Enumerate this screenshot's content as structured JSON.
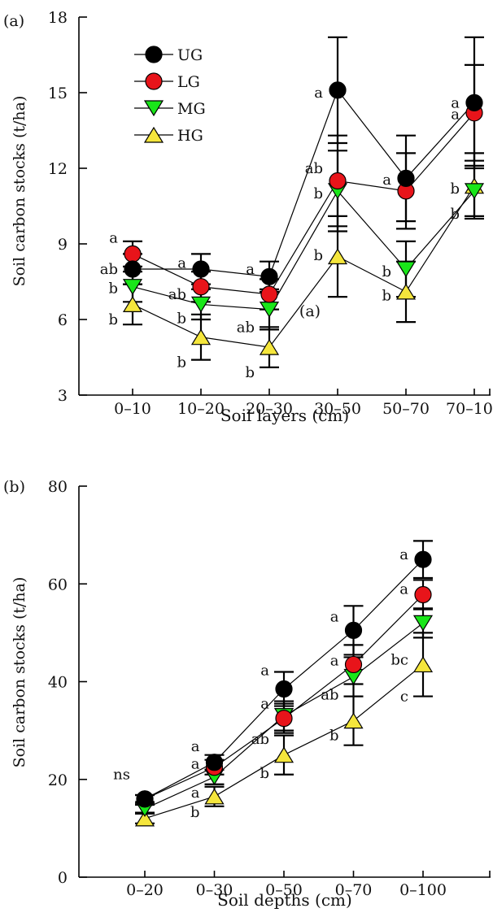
{
  "chart_data": [
    {
      "type": "line",
      "panel_label": "(a)",
      "inner_label": "(a)",
      "xlabel": "Soil layers (cm)",
      "ylabel": "Soil carbon stocks (t/ha)",
      "categories": [
        "0–10",
        "10–20",
        "20–30",
        "30–50",
        "50–70",
        "70–100"
      ],
      "ylim": [
        3,
        18
      ],
      "yticks": [
        3,
        6,
        9,
        12,
        15,
        18
      ],
      "legend_position": "top-left",
      "series": [
        {
          "name": "UG",
          "marker": "circle",
          "color": "#000000",
          "values": [
            8.0,
            8.0,
            7.7,
            15.1,
            11.6,
            14.6
          ],
          "errors": [
            0.6,
            0.6,
            0.6,
            2.1,
            1.7,
            2.6
          ]
        },
        {
          "name": "LG",
          "marker": "circle",
          "color": "#e8141a",
          "values": [
            8.6,
            7.3,
            7.0,
            11.5,
            11.1,
            14.2
          ],
          "errors": [
            0.5,
            0.6,
            0.6,
            1.8,
            1.5,
            1.9
          ]
        },
        {
          "name": "MG",
          "marker": "triangle-down",
          "color": "#19e619",
          "values": [
            7.3,
            6.6,
            6.4,
            11.1,
            8.0,
            11.1
          ],
          "errors": [
            0.6,
            0.6,
            0.8,
            1.6,
            1.1,
            1.0
          ]
        },
        {
          "name": "HG",
          "marker": "triangle-up",
          "color": "#f5e63c",
          "values": [
            6.6,
            5.3,
            4.9,
            8.5,
            7.1,
            11.3
          ],
          "errors": [
            0.8,
            0.9,
            0.8,
            1.6,
            1.2,
            1.3
          ]
        }
      ],
      "annotations": [
        {
          "text": "a",
          "x": "0–10",
          "y": 9.25
        },
        {
          "text": "ab",
          "x": "0–10",
          "y": 8.0
        },
        {
          "text": "b",
          "x": "0–10",
          "y": 7.25
        },
        {
          "text": "b",
          "x": "0–10",
          "y": 6.0
        },
        {
          "text": "a",
          "x": "10–20",
          "y": 8.25
        },
        {
          "text": "ab",
          "x": "10–20",
          "y": 7.0
        },
        {
          "text": "b",
          "x": "10–20",
          "y": 6.05
        },
        {
          "text": "b",
          "x": "10–20",
          "y": 4.3
        },
        {
          "text": "a",
          "x": "20–30",
          "y": 8.0
        },
        {
          "text": "ab",
          "x": "20–30",
          "y": 5.7
        },
        {
          "text": "b",
          "x": "20–30",
          "y": 3.9
        },
        {
          "text": "a",
          "x": "30–50",
          "y": 15.0
        },
        {
          "text": "ab",
          "x": "30–50",
          "y": 12.0
        },
        {
          "text": "b",
          "x": "30–50",
          "y": 11.0
        },
        {
          "text": "b",
          "x": "30–50",
          "y": 8.55
        },
        {
          "text": "a",
          "x": "50–70",
          "y": 11.55
        },
        {
          "text": "b",
          "x": "50–70",
          "y": 7.9
        },
        {
          "text": "b",
          "x": "50–70",
          "y": 6.95
        },
        {
          "text": "a",
          "x": "70–100",
          "y": 14.6
        },
        {
          "text": "a",
          "x": "70–100",
          "y": 14.15
        },
        {
          "text": "b",
          "x": "70–100",
          "y": 11.2
        },
        {
          "text": "b",
          "x": "70–100",
          "y": 10.2
        }
      ]
    },
    {
      "type": "line",
      "panel_label": "(b)",
      "xlabel": "Soil depths (cm)",
      "ylabel": "Soil carbon stocks (t/ha)",
      "categories": [
        "0–20",
        "0–30",
        "0–50",
        "0–70",
        "0–100"
      ],
      "ylim": [
        0,
        80
      ],
      "yticks": [
        0,
        20,
        40,
        60,
        80
      ],
      "series": [
        {
          "name": "UG",
          "marker": "circle",
          "color": "#000000",
          "values": [
            16.0,
            23.5,
            38.5,
            50.5,
            65.0
          ],
          "errors": [
            0.8,
            1.5,
            3.5,
            5.0,
            3.8
          ]
        },
        {
          "name": "LG",
          "marker": "circle",
          "color": "#e8141a",
          "values": [
            16.0,
            22.5,
            32.5,
            43.5,
            57.8
          ],
          "errors": [
            0.8,
            1.5,
            3.0,
            4.0,
            3.0
          ]
        },
        {
          "name": "MG",
          "marker": "triangle-down",
          "color": "#19e619",
          "values": [
            14.0,
            20.5,
            33.0,
            41.0,
            52.0
          ],
          "errors": [
            0.8,
            1.5,
            3.0,
            4.0,
            3.0
          ]
        },
        {
          "name": "HG",
          "marker": "triangle-up",
          "color": "#f5e63c",
          "values": [
            12.0,
            16.5,
            25.0,
            32.0,
            43.5
          ],
          "errors": [
            1.0,
            2.0,
            4.0,
            5.0,
            6.5
          ]
        }
      ],
      "annotations": [
        {
          "text": "ns",
          "x": "0–20",
          "y": 21.0
        },
        {
          "text": "a",
          "x": "0–30",
          "y": 26.8
        },
        {
          "text": "a",
          "x": "0–30",
          "y": 23.2
        },
        {
          "text": "a",
          "x": "0–30",
          "y": 17.3
        },
        {
          "text": "b",
          "x": "0–30",
          "y": 13.3
        },
        {
          "text": "a",
          "x": "0–50",
          "y": 42.3
        },
        {
          "text": "a",
          "x": "0–50",
          "y": 35.5
        },
        {
          "text": "ab",
          "x": "0–50",
          "y": 28.3
        },
        {
          "text": "b",
          "x": "0–50",
          "y": 21.3
        },
        {
          "text": "a",
          "x": "0–70",
          "y": 53.3
        },
        {
          "text": "a",
          "x": "0–70",
          "y": 44.3
        },
        {
          "text": "ab",
          "x": "0–70",
          "y": 37.3
        },
        {
          "text": "b",
          "x": "0–70",
          "y": 29.0
        },
        {
          "text": "a",
          "x": "0–100",
          "y": 66.0
        },
        {
          "text": "a",
          "x": "0–100",
          "y": 59.0
        },
        {
          "text": "bc",
          "x": "0–100",
          "y": 44.5
        },
        {
          "text": "c",
          "x": "0–100",
          "y": 37.0
        }
      ]
    }
  ]
}
